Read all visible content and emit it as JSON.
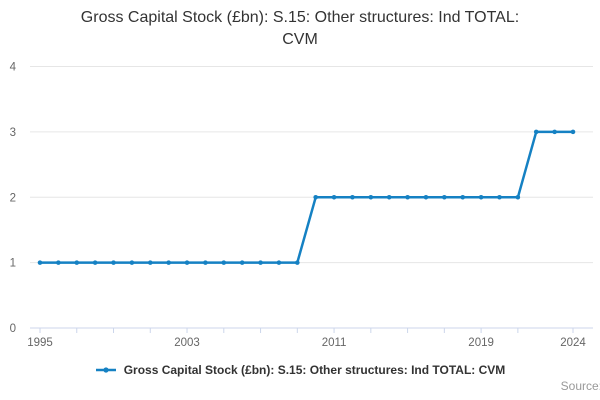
{
  "title": "Gross Capital Stock (£bn): S.15: Other structures: Ind TOTAL: CVM",
  "source_label": "Source:",
  "legend": {
    "label": "Gross Capital Stock (£bn): S.15: Other structures: Ind TOTAL: CVM"
  },
  "chart_data": {
    "type": "line",
    "title": "Gross Capital Stock (£bn): S.15: Other structures: Ind TOTAL: CVM",
    "x": [
      1995,
      1996,
      1997,
      1998,
      1999,
      2000,
      2001,
      2002,
      2003,
      2004,
      2005,
      2006,
      2007,
      2008,
      2009,
      2010,
      2011,
      2012,
      2013,
      2014,
      2015,
      2016,
      2017,
      2018,
      2019,
      2020,
      2021,
      2022,
      2023,
      2024
    ],
    "values": [
      1,
      1,
      1,
      1,
      1,
      1,
      1,
      1,
      1,
      1,
      1,
      1,
      1,
      1,
      1,
      2,
      2,
      2,
      2,
      2,
      2,
      2,
      2,
      2,
      2,
      2,
      2,
      3,
      3,
      3
    ],
    "series_name": "Gross Capital Stock (£bn): S.15: Other structures: Ind TOTAL: CVM",
    "xlabel": "",
    "ylabel": "",
    "ylim": [
      0,
      4
    ],
    "yticks": [
      0,
      1,
      2,
      3,
      4
    ],
    "xtick_labels": [
      1995,
      2003,
      2011,
      2019,
      2024
    ],
    "xtick_minor_step": 2,
    "grid": "horizontal",
    "legend_position": "bottom",
    "marker": "circle",
    "colors": {
      "line": "#1581c3",
      "grid": "#e6e6e6",
      "axis": "#ccd6eb",
      "tick_label": "#666666",
      "title": "#333333",
      "source": "#999999"
    }
  }
}
